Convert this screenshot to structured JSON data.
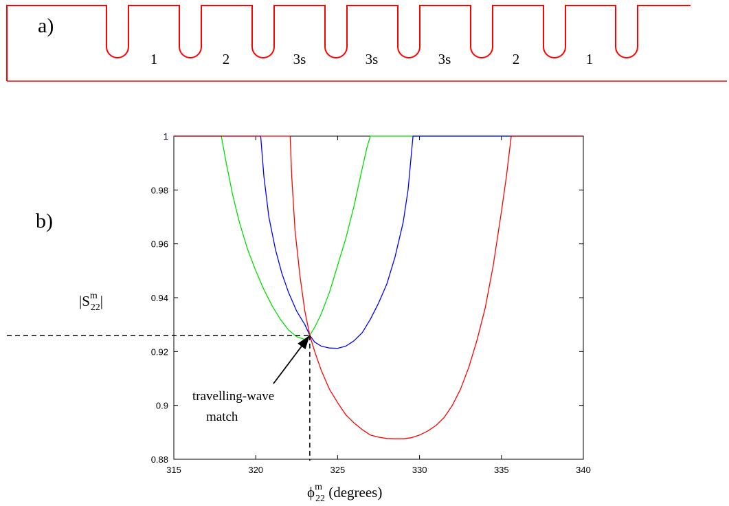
{
  "panel_a": {
    "label": "a)",
    "cell_labels": [
      "1",
      "2",
      "3s",
      "3s",
      "3s",
      "2",
      "1"
    ],
    "structure_color": "#ff0000"
  },
  "panel_b": {
    "label": "b)",
    "annotation": {
      "line1": "travelling-wave",
      "line2": "match"
    }
  },
  "chart_data": {
    "type": "line",
    "xlabel_parts": {
      "symbol": "ϕ",
      "sup": "m",
      "sub": "22",
      "unit": " (degrees)"
    },
    "ylabel_parts": {
      "prefix": "|S",
      "sup": "m",
      "sub": "22",
      "suffix": "|"
    },
    "xlim": [
      315,
      340
    ],
    "ylim": [
      0.88,
      1.0
    ],
    "xticks": [
      315,
      320,
      325,
      330,
      335,
      340
    ],
    "xtick_labels": [
      "315",
      "320",
      "325",
      "330",
      "335",
      "340"
    ],
    "yticks": [
      0.88,
      0.9,
      0.92,
      0.94,
      0.96,
      0.98,
      1.0
    ],
    "ytick_labels": [
      "0.88",
      "0.9",
      "0.92",
      "0.94",
      "0.96",
      "0.98",
      "1"
    ],
    "grid": false,
    "match_point": {
      "x": 323.3,
      "y": 0.926
    },
    "series": [
      {
        "color": "#00dd00",
        "x": [
          315,
          317.9,
          318.2,
          318.6,
          319.0,
          319.5,
          320.0,
          320.5,
          321.0,
          321.5,
          322.0,
          322.5,
          323.0,
          323.3,
          323.6,
          324.0,
          324.5,
          325.0,
          325.5,
          326.0,
          326.5,
          326.8,
          327.0,
          340
        ],
        "y": [
          1.0,
          1.0,
          0.99,
          0.978,
          0.968,
          0.958,
          0.95,
          0.943,
          0.937,
          0.932,
          0.928,
          0.9255,
          0.9245,
          0.926,
          0.929,
          0.934,
          0.942,
          0.952,
          0.962,
          0.974,
          0.988,
          0.996,
          1.0,
          1.0
        ]
      },
      {
        "color": "#0000ff",
        "x": [
          315,
          320.3,
          320.5,
          320.8,
          321.2,
          321.6,
          322.0,
          322.5,
          323.0,
          323.3,
          323.6,
          324.0,
          324.5,
          325.0,
          325.5,
          326.0,
          326.5,
          327.0,
          327.5,
          328.0,
          328.5,
          329.0,
          329.3,
          329.6,
          340
        ],
        "y": [
          1.0,
          1.0,
          0.985,
          0.97,
          0.958,
          0.949,
          0.942,
          0.935,
          0.93,
          0.926,
          0.9235,
          0.922,
          0.9213,
          0.9212,
          0.922,
          0.924,
          0.927,
          0.932,
          0.938,
          0.945,
          0.955,
          0.968,
          0.98,
          1.0,
          1.0
        ]
      },
      {
        "color": "#ff0000",
        "x": [
          315,
          322.1,
          322.2,
          322.4,
          322.7,
          323.0,
          323.3,
          323.6,
          324.0,
          324.5,
          325.0,
          325.5,
          326.0,
          326.5,
          327.0,
          327.5,
          328.0,
          328.5,
          329.0,
          329.5,
          330.0,
          330.5,
          331.0,
          331.5,
          332.0,
          332.5,
          333.0,
          333.5,
          334.0,
          334.5,
          335.0,
          335.3,
          335.6,
          340
        ],
        "y": [
          1.0,
          1.0,
          0.985,
          0.965,
          0.948,
          0.935,
          0.926,
          0.92,
          0.913,
          0.906,
          0.901,
          0.8965,
          0.8935,
          0.891,
          0.889,
          0.8882,
          0.8877,
          0.8876,
          0.8876,
          0.888,
          0.889,
          0.8905,
          0.8925,
          0.8955,
          0.9,
          0.906,
          0.914,
          0.924,
          0.936,
          0.952,
          0.972,
          0.985,
          1.0,
          1.0
        ]
      }
    ]
  }
}
